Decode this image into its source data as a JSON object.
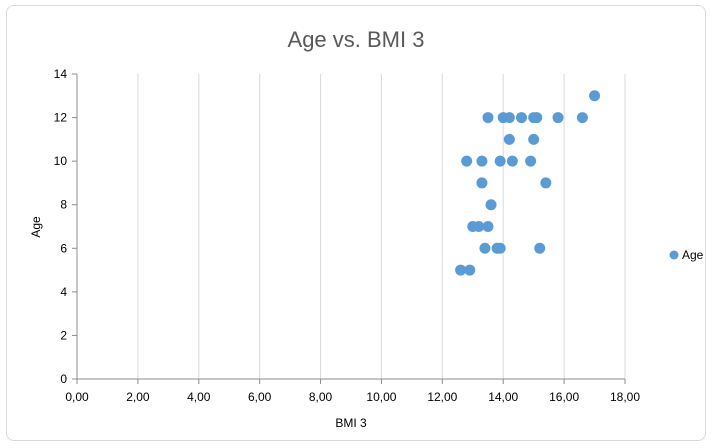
{
  "chart_data": {
    "type": "scatter",
    "title": "Age vs. BMI 3",
    "xlabel": "BMI 3",
    "ylabel": "Age",
    "xlim": [
      0,
      18
    ],
    "ylim": [
      0,
      14
    ],
    "x_ticks": [
      "0,00",
      "2,00",
      "4,00",
      "6,00",
      "8,00",
      "10,00",
      "12,00",
      "14,00",
      "16,00",
      "18,00"
    ],
    "y_ticks": [
      "0",
      "2",
      "4",
      "6",
      "8",
      "10",
      "12",
      "14"
    ],
    "grid": "vertical",
    "legend_position": "right",
    "series": [
      {
        "name": "Age",
        "color": "#5b9bd5",
        "points": [
          [
            12.6,
            5
          ],
          [
            12.9,
            5
          ],
          [
            12.8,
            10
          ],
          [
            13.0,
            7
          ],
          [
            13.2,
            7
          ],
          [
            13.3,
            9
          ],
          [
            13.3,
            10
          ],
          [
            13.4,
            6
          ],
          [
            13.5,
            12
          ],
          [
            13.5,
            7
          ],
          [
            13.6,
            8
          ],
          [
            13.8,
            6
          ],
          [
            13.9,
            10
          ],
          [
            13.9,
            6
          ],
          [
            14.0,
            12
          ],
          [
            14.2,
            12
          ],
          [
            14.2,
            11
          ],
          [
            14.3,
            10
          ],
          [
            14.6,
            12
          ],
          [
            14.9,
            10
          ],
          [
            15.0,
            11
          ],
          [
            15.0,
            12
          ],
          [
            15.1,
            12
          ],
          [
            15.2,
            6
          ],
          [
            15.4,
            9
          ],
          [
            15.8,
            12
          ],
          [
            16.6,
            12
          ],
          [
            17.0,
            13
          ]
        ]
      }
    ]
  }
}
